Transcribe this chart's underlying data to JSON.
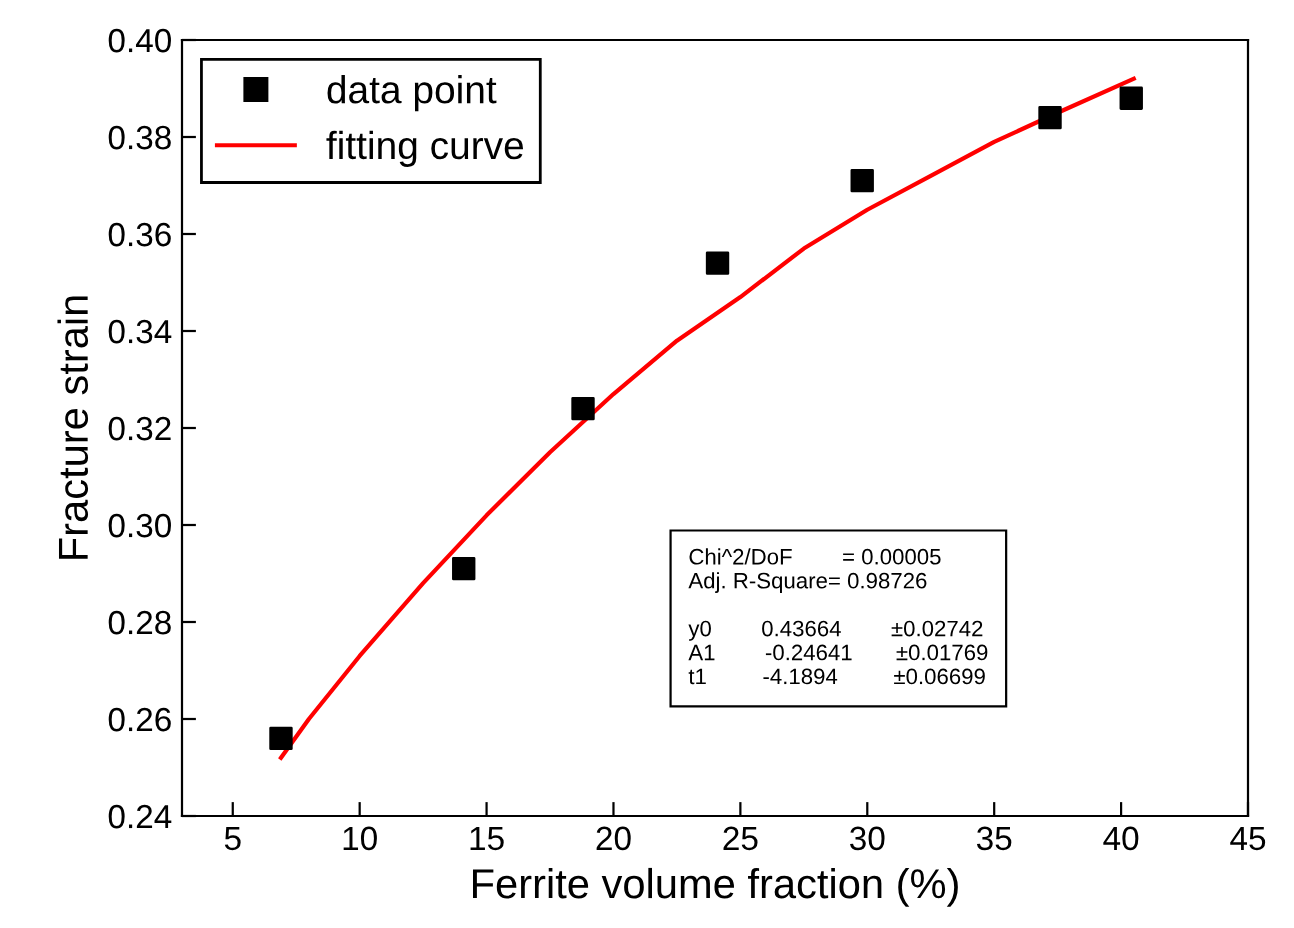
{
  "chart_data": {
    "type": "scatter",
    "xlabel": "Ferrite volume fraction (%)",
    "ylabel": "Fracture strain",
    "series": [
      {
        "name": "data point",
        "color": "#000000",
        "marker": "square",
        "x": [
          6.9,
          14.1,
          18.8,
          24.1,
          29.8,
          37.2,
          40.4
        ],
        "values": [
          0.256,
          0.291,
          0.324,
          0.354,
          0.371,
          0.384,
          0.388
        ]
      },
      {
        "name": "fitting curve",
        "type": "line",
        "color": "#ff0000",
        "marker": "none",
        "line_style": "solid",
        "x": [
          6.9,
          8,
          10,
          12.5,
          15,
          17.5,
          20,
          22.5,
          25,
          27.5,
          30,
          32.5,
          35,
          37.5,
          40.5
        ],
        "values": [
          0.252,
          0.26,
          0.273,
          0.288,
          0.302,
          0.315,
          0.327,
          0.338,
          0.347,
          0.357,
          0.365,
          0.372,
          0.379,
          0.385,
          0.392
        ]
      }
    ],
    "xlim": [
      3,
      45
    ],
    "xticks": [
      5,
      10,
      15,
      20,
      25,
      30,
      35,
      40,
      45
    ],
    "ylim": [
      0.24,
      0.4
    ],
    "yticks": [
      {
        "value": 0.24,
        "label": "0.24"
      },
      {
        "value": 0.26,
        "label": "0.26"
      },
      {
        "value": 0.28,
        "label": "0.28"
      },
      {
        "value": 0.3,
        "label": "0.30"
      },
      {
        "value": 0.32,
        "label": "0.32"
      },
      {
        "value": 0.34,
        "label": "0.34"
      },
      {
        "value": 0.36,
        "label": "0.36"
      },
      {
        "value": 0.38,
        "label": "0.38"
      },
      {
        "value": 0.4,
        "label": "0.40"
      }
    ],
    "grid": false,
    "legend": "top left",
    "annotations": [
      "Chi^2/DoF        = 0.00005",
      "Adj. R-Square= 0.98726",
      "y0        0.43664        ±0.02742",
      "A1        -0.24641       ±0.01769",
      "t1         -4.1894         ±0.06699"
    ]
  }
}
